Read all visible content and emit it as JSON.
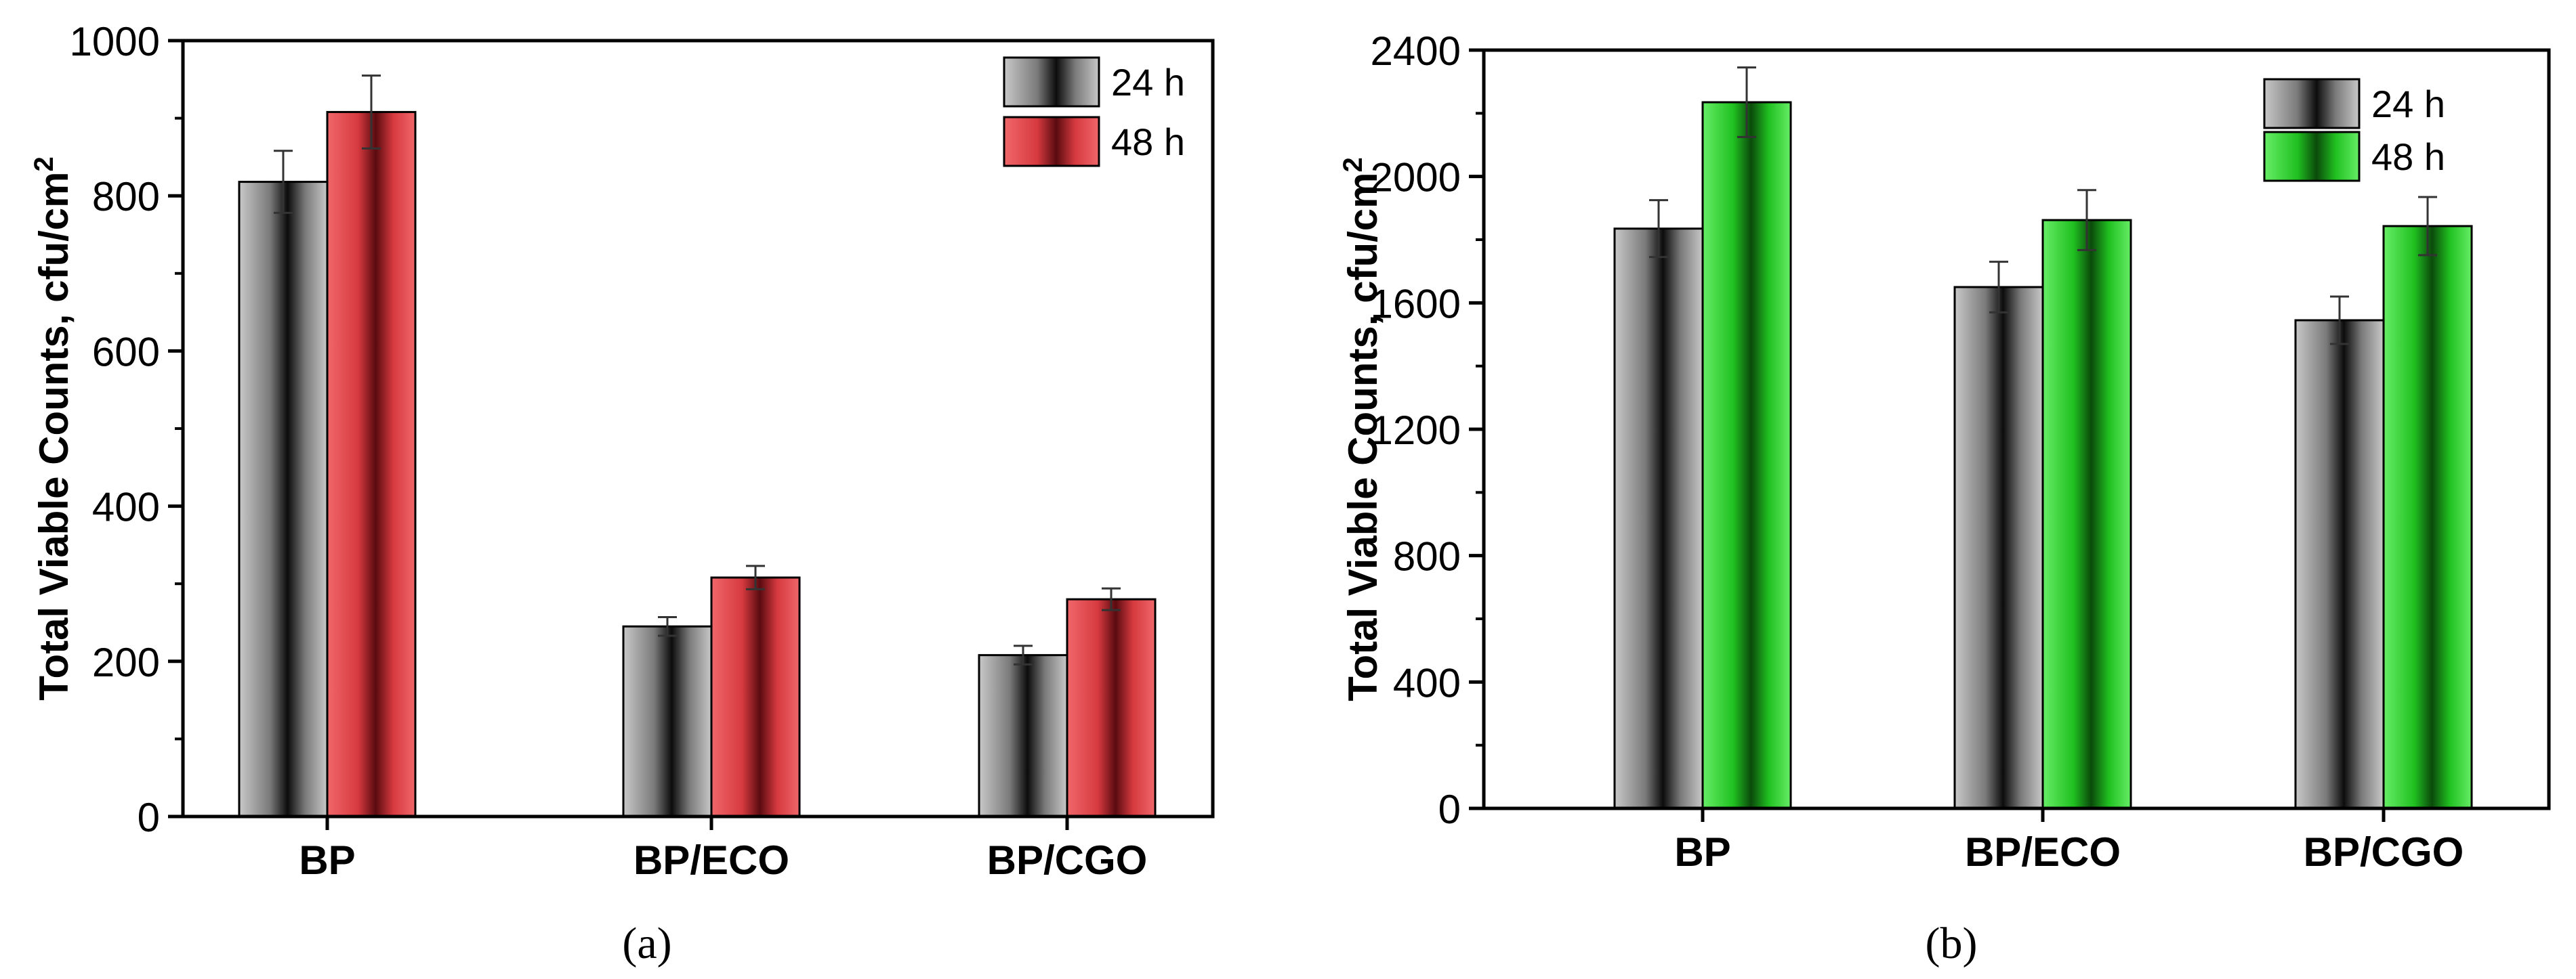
{
  "chart_data": [
    {
      "type": "bar",
      "panel_label": "(a)",
      "categories": [
        "BP",
        "BP/ECO",
        "BP/CGO"
      ],
      "ylabel": "Total Viable Counts, cfu/cm²",
      "ylabel_main": "Total Viable Counts, cfu/cm",
      "ylabel_sup": "2",
      "xlabel": "",
      "ylim": [
        0,
        1000
      ],
      "yticks": [
        0,
        200,
        400,
        600,
        800,
        1000
      ],
      "legend_position": "top-right",
      "series": [
        {
          "name": "24 h",
          "values": [
            818,
            245,
            208
          ],
          "errors": [
            40,
            12,
            12
          ],
          "color": "#8a8a8a"
        },
        {
          "name": "48 h",
          "values": [
            908,
            308,
            280
          ],
          "errors": [
            47,
            15,
            14
          ],
          "color": "#e8474c"
        }
      ]
    },
    {
      "type": "bar",
      "panel_label": "(b)",
      "categories": [
        "BP",
        "BP/ECO",
        "BP/CGO"
      ],
      "ylabel": "Total Viable Counts, cfu/cm²",
      "ylabel_main": "Total Viable Counts, cfu/cm",
      "ylabel_sup": "2",
      "xlabel": "",
      "ylim": [
        0,
        2400
      ],
      "yticks": [
        0,
        400,
        800,
        1200,
        1600,
        2000,
        2400
      ],
      "legend_position": "top-right",
      "series": [
        {
          "name": "24 h",
          "values": [
            1835,
            1650,
            1545
          ],
          "errors": [
            90,
            80,
            75
          ],
          "color": "#8a8a8a"
        },
        {
          "name": "48 h",
          "values": [
            2235,
            1862,
            1843
          ],
          "errors": [
            110,
            95,
            92
          ],
          "color": "#22c922"
        }
      ]
    }
  ]
}
